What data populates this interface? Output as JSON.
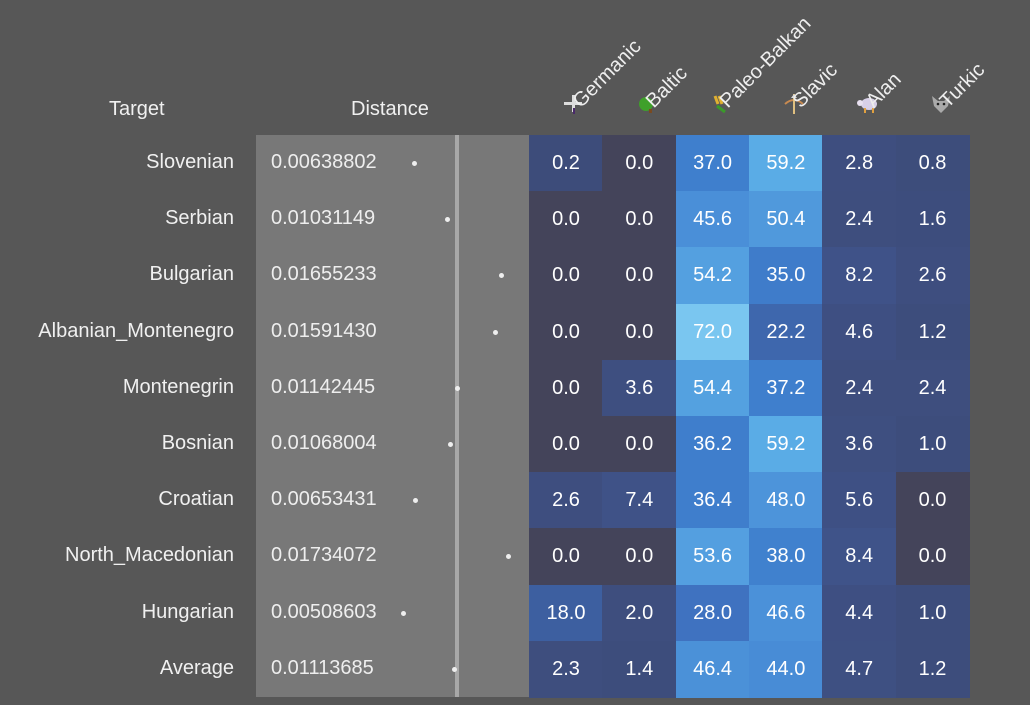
{
  "chart_data": {
    "type": "heatmap",
    "headers": {
      "target": "Target",
      "distance": "Distance"
    },
    "columns": [
      {
        "label": "Germanic",
        "icon": "sword-icon"
      },
      {
        "label": "Baltic",
        "icon": "tree-icon"
      },
      {
        "label": "Paleo-Balkan",
        "icon": "wheat-icon"
      },
      {
        "label": "Slavic",
        "icon": "bow-icon"
      },
      {
        "label": "Alan",
        "icon": "sheep-icon"
      },
      {
        "label": "Turkic",
        "icon": "wolf-icon"
      }
    ],
    "rows": [
      {
        "target": "Slovenian",
        "distance": "0.00638802",
        "values": [
          0.2,
          0.0,
          37.0,
          59.2,
          2.8,
          0.8
        ]
      },
      {
        "target": "Serbian",
        "distance": "0.01031149",
        "values": [
          0.0,
          0.0,
          45.6,
          50.4,
          2.4,
          1.6
        ]
      },
      {
        "target": "Bulgarian",
        "distance": "0.01655233",
        "values": [
          0.0,
          0.0,
          54.2,
          35.0,
          8.2,
          2.6
        ]
      },
      {
        "target": "Albanian_Montenegro",
        "distance": "0.01591430",
        "values": [
          0.0,
          0.0,
          72.0,
          22.2,
          4.6,
          1.2
        ]
      },
      {
        "target": "Montenegrin",
        "distance": "0.01142445",
        "values": [
          0.0,
          3.6,
          54.4,
          37.2,
          2.4,
          2.4
        ]
      },
      {
        "target": "Bosnian",
        "distance": "0.01068004",
        "values": [
          0.0,
          0.0,
          36.2,
          59.2,
          3.6,
          1.0
        ]
      },
      {
        "target": "Croatian",
        "distance": "0.00653431",
        "values": [
          2.6,
          7.4,
          36.4,
          48.0,
          5.6,
          0.0
        ]
      },
      {
        "target": "North_Macedonian",
        "distance": "0.01734072",
        "values": [
          0.0,
          0.0,
          53.6,
          38.0,
          8.4,
          0.0
        ]
      },
      {
        "target": "Hungarian",
        "distance": "0.00508603",
        "values": [
          18.0,
          2.0,
          28.0,
          46.6,
          4.4,
          1.0
        ]
      },
      {
        "target": "Average",
        "distance": "0.01113685",
        "values": [
          2.3,
          1.4,
          46.4,
          44.0,
          4.7,
          1.2
        ]
      }
    ],
    "color_scale": {
      "zero": "#44445a",
      "low": "#3d4d7c",
      "mid": "#3f7fcd",
      "high": "#7ac6f0"
    }
  }
}
